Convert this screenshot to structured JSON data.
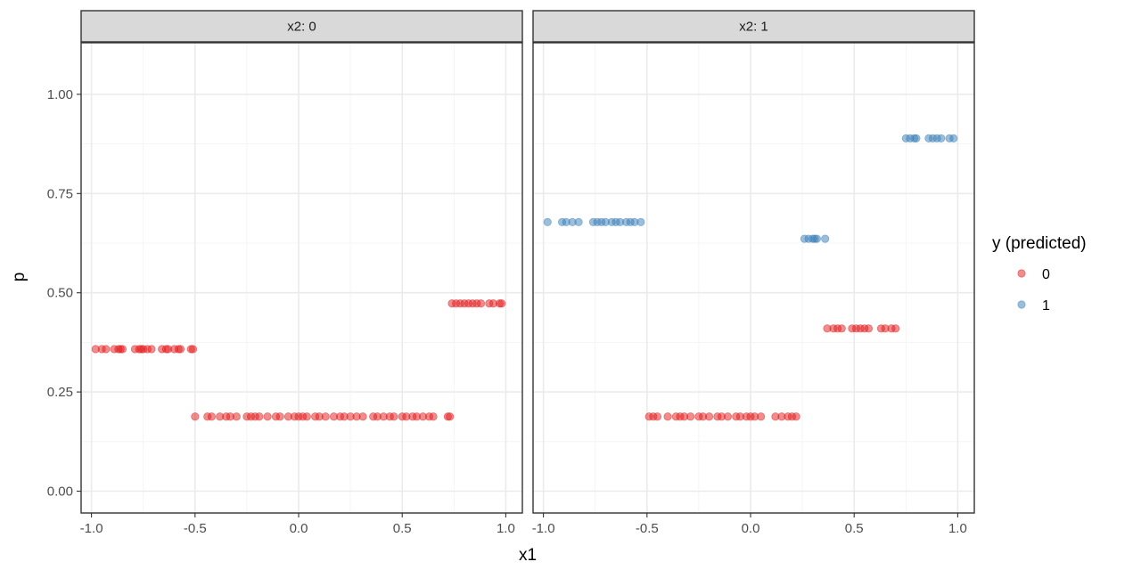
{
  "chart_data": {
    "type": "scatter",
    "xlabel": "x1",
    "ylabel": "p",
    "xlim": [
      -1.05,
      1.08
    ],
    "ylim": [
      -0.055,
      1.13
    ],
    "x_ticks": [
      "-1.0",
      "-0.5",
      "0.0",
      "0.5",
      "1.0"
    ],
    "x_tick_values": [
      -1.0,
      -0.5,
      0.0,
      0.5,
      1.0
    ],
    "y_ticks": [
      "0.00",
      "0.25",
      "0.50",
      "0.75",
      "1.00"
    ],
    "y_tick_values": [
      0.0,
      0.25,
      0.5,
      0.75,
      1.0
    ],
    "grid": true,
    "point_alpha": 0.5,
    "legend": {
      "title": "y (predicted)",
      "position": "right",
      "entries": [
        {
          "label": "0",
          "color": "#E41A1C"
        },
        {
          "label": "1",
          "color": "#377EB8"
        }
      ]
    },
    "panels": [
      {
        "strip": "x2: 0",
        "series": [
          {
            "name": "0",
            "color": "#E41A1C",
            "points": [
              {
                "x": -0.98,
                "y": 0.358
              },
              {
                "x": -0.95,
                "y": 0.358
              },
              {
                "x": -0.93,
                "y": 0.358
              },
              {
                "x": -0.89,
                "y": 0.358
              },
              {
                "x": -0.87,
                "y": 0.358
              },
              {
                "x": -0.86,
                "y": 0.358
              },
              {
                "x": -0.85,
                "y": 0.358
              },
              {
                "x": -0.79,
                "y": 0.358
              },
              {
                "x": -0.77,
                "y": 0.358
              },
              {
                "x": -0.76,
                "y": 0.358
              },
              {
                "x": -0.75,
                "y": 0.358
              },
              {
                "x": -0.73,
                "y": 0.358
              },
              {
                "x": -0.71,
                "y": 0.358
              },
              {
                "x": -0.66,
                "y": 0.358
              },
              {
                "x": -0.64,
                "y": 0.358
              },
              {
                "x": -0.63,
                "y": 0.358
              },
              {
                "x": -0.6,
                "y": 0.358
              },
              {
                "x": -0.58,
                "y": 0.358
              },
              {
                "x": -0.57,
                "y": 0.358
              },
              {
                "x": -0.52,
                "y": 0.358
              },
              {
                "x": -0.51,
                "y": 0.358
              },
              {
                "x": -0.5,
                "y": 0.188
              },
              {
                "x": -0.44,
                "y": 0.188
              },
              {
                "x": -0.42,
                "y": 0.188
              },
              {
                "x": -0.38,
                "y": 0.188
              },
              {
                "x": -0.35,
                "y": 0.188
              },
              {
                "x": -0.33,
                "y": 0.188
              },
              {
                "x": -0.3,
                "y": 0.188
              },
              {
                "x": -0.25,
                "y": 0.188
              },
              {
                "x": -0.23,
                "y": 0.188
              },
              {
                "x": -0.21,
                "y": 0.188
              },
              {
                "x": -0.19,
                "y": 0.188
              },
              {
                "x": -0.15,
                "y": 0.188
              },
              {
                "x": -0.11,
                "y": 0.188
              },
              {
                "x": -0.09,
                "y": 0.188
              },
              {
                "x": -0.05,
                "y": 0.188
              },
              {
                "x": -0.02,
                "y": 0.188
              },
              {
                "x": 0.0,
                "y": 0.188
              },
              {
                "x": 0.02,
                "y": 0.188
              },
              {
                "x": 0.04,
                "y": 0.188
              },
              {
                "x": 0.08,
                "y": 0.188
              },
              {
                "x": 0.1,
                "y": 0.188
              },
              {
                "x": 0.13,
                "y": 0.188
              },
              {
                "x": 0.17,
                "y": 0.188
              },
              {
                "x": 0.2,
                "y": 0.188
              },
              {
                "x": 0.22,
                "y": 0.188
              },
              {
                "x": 0.25,
                "y": 0.188
              },
              {
                "x": 0.28,
                "y": 0.188
              },
              {
                "x": 0.31,
                "y": 0.188
              },
              {
                "x": 0.36,
                "y": 0.188
              },
              {
                "x": 0.38,
                "y": 0.188
              },
              {
                "x": 0.41,
                "y": 0.188
              },
              {
                "x": 0.44,
                "y": 0.188
              },
              {
                "x": 0.46,
                "y": 0.188
              },
              {
                "x": 0.5,
                "y": 0.188
              },
              {
                "x": 0.52,
                "y": 0.188
              },
              {
                "x": 0.55,
                "y": 0.188
              },
              {
                "x": 0.57,
                "y": 0.188
              },
              {
                "x": 0.6,
                "y": 0.188
              },
              {
                "x": 0.63,
                "y": 0.188
              },
              {
                "x": 0.65,
                "y": 0.188
              },
              {
                "x": 0.72,
                "y": 0.188
              },
              {
                "x": 0.73,
                "y": 0.188
              },
              {
                "x": 0.74,
                "y": 0.473
              },
              {
                "x": 0.76,
                "y": 0.473
              },
              {
                "x": 0.78,
                "y": 0.473
              },
              {
                "x": 0.8,
                "y": 0.473
              },
              {
                "x": 0.82,
                "y": 0.473
              },
              {
                "x": 0.84,
                "y": 0.473
              },
              {
                "x": 0.86,
                "y": 0.473
              },
              {
                "x": 0.88,
                "y": 0.473
              },
              {
                "x": 0.92,
                "y": 0.473
              },
              {
                "x": 0.94,
                "y": 0.473
              },
              {
                "x": 0.97,
                "y": 0.473
              },
              {
                "x": 0.98,
                "y": 0.473
              }
            ]
          }
        ]
      },
      {
        "strip": "x2: 1",
        "series": [
          {
            "name": "0",
            "color": "#E41A1C",
            "points": [
              {
                "x": -0.49,
                "y": 0.188
              },
              {
                "x": -0.47,
                "y": 0.188
              },
              {
                "x": -0.45,
                "y": 0.188
              },
              {
                "x": -0.4,
                "y": 0.188
              },
              {
                "x": -0.36,
                "y": 0.188
              },
              {
                "x": -0.34,
                "y": 0.188
              },
              {
                "x": -0.32,
                "y": 0.188
              },
              {
                "x": -0.29,
                "y": 0.188
              },
              {
                "x": -0.25,
                "y": 0.188
              },
              {
                "x": -0.23,
                "y": 0.188
              },
              {
                "x": -0.2,
                "y": 0.188
              },
              {
                "x": -0.16,
                "y": 0.188
              },
              {
                "x": -0.14,
                "y": 0.188
              },
              {
                "x": -0.11,
                "y": 0.188
              },
              {
                "x": -0.07,
                "y": 0.188
              },
              {
                "x": -0.05,
                "y": 0.188
              },
              {
                "x": -0.02,
                "y": 0.188
              },
              {
                "x": 0.0,
                "y": 0.188
              },
              {
                "x": 0.02,
                "y": 0.188
              },
              {
                "x": 0.05,
                "y": 0.188
              },
              {
                "x": 0.12,
                "y": 0.188
              },
              {
                "x": 0.15,
                "y": 0.188
              },
              {
                "x": 0.18,
                "y": 0.188
              },
              {
                "x": 0.2,
                "y": 0.188
              },
              {
                "x": 0.22,
                "y": 0.188
              },
              {
                "x": 0.37,
                "y": 0.41
              },
              {
                "x": 0.4,
                "y": 0.41
              },
              {
                "x": 0.42,
                "y": 0.41
              },
              {
                "x": 0.44,
                "y": 0.41
              },
              {
                "x": 0.49,
                "y": 0.41
              },
              {
                "x": 0.51,
                "y": 0.41
              },
              {
                "x": 0.53,
                "y": 0.41
              },
              {
                "x": 0.55,
                "y": 0.41
              },
              {
                "x": 0.57,
                "y": 0.41
              },
              {
                "x": 0.63,
                "y": 0.41
              },
              {
                "x": 0.65,
                "y": 0.41
              },
              {
                "x": 0.68,
                "y": 0.41
              },
              {
                "x": 0.7,
                "y": 0.41
              }
            ]
          },
          {
            "name": "1",
            "color": "#377EB8",
            "points": [
              {
                "x": -0.98,
                "y": 0.678
              },
              {
                "x": -0.91,
                "y": 0.678
              },
              {
                "x": -0.89,
                "y": 0.678
              },
              {
                "x": -0.86,
                "y": 0.678
              },
              {
                "x": -0.83,
                "y": 0.678
              },
              {
                "x": -0.76,
                "y": 0.678
              },
              {
                "x": -0.74,
                "y": 0.678
              },
              {
                "x": -0.72,
                "y": 0.678
              },
              {
                "x": -0.7,
                "y": 0.678
              },
              {
                "x": -0.67,
                "y": 0.678
              },
              {
                "x": -0.65,
                "y": 0.678
              },
              {
                "x": -0.63,
                "y": 0.678
              },
              {
                "x": -0.6,
                "y": 0.678
              },
              {
                "x": -0.58,
                "y": 0.678
              },
              {
                "x": -0.56,
                "y": 0.678
              },
              {
                "x": -0.53,
                "y": 0.678
              },
              {
                "x": 0.26,
                "y": 0.636
              },
              {
                "x": 0.28,
                "y": 0.636
              },
              {
                "x": 0.3,
                "y": 0.636
              },
              {
                "x": 0.31,
                "y": 0.636
              },
              {
                "x": 0.32,
                "y": 0.636
              },
              {
                "x": 0.36,
                "y": 0.636
              },
              {
                "x": 0.75,
                "y": 0.889
              },
              {
                "x": 0.77,
                "y": 0.889
              },
              {
                "x": 0.79,
                "y": 0.889
              },
              {
                "x": 0.8,
                "y": 0.889
              },
              {
                "x": 0.86,
                "y": 0.889
              },
              {
                "x": 0.88,
                "y": 0.889
              },
              {
                "x": 0.9,
                "y": 0.889
              },
              {
                "x": 0.92,
                "y": 0.889
              },
              {
                "x": 0.96,
                "y": 0.889
              },
              {
                "x": 0.98,
                "y": 0.889
              }
            ]
          }
        ]
      }
    ]
  }
}
